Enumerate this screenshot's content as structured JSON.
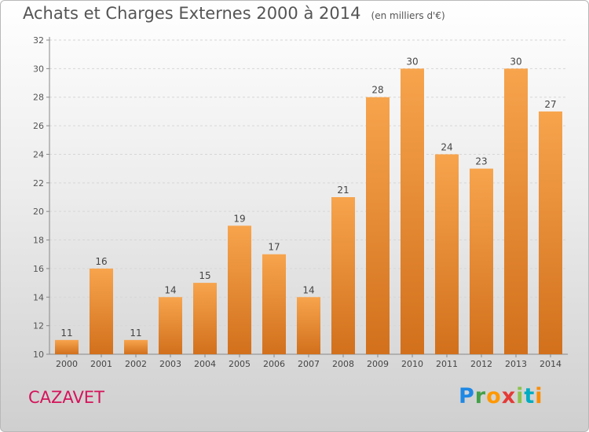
{
  "chart_data": {
    "type": "bar",
    "title": "Achats et Charges Externes 2000 à 2014",
    "unit_label": "(en milliers d'€)",
    "categories": [
      "2000",
      "2001",
      "2002",
      "2003",
      "2004",
      "2005",
      "2006",
      "2007",
      "2008",
      "2009",
      "2010",
      "2011",
      "2012",
      "2013",
      "2014"
    ],
    "values": [
      11,
      16,
      11,
      14,
      15,
      19,
      17,
      14,
      21,
      28,
      30,
      24,
      23,
      30,
      27
    ],
    "ylim": [
      10,
      32
    ],
    "yticks": [
      10,
      12,
      14,
      16,
      18,
      20,
      22,
      24,
      26,
      28,
      30,
      32
    ],
    "grid": true,
    "bar_color_top": "#f7a44d",
    "bar_color_bottom": "#d2701c"
  },
  "footer": {
    "commune": "CAZAVET",
    "logo": "Proxiti"
  }
}
